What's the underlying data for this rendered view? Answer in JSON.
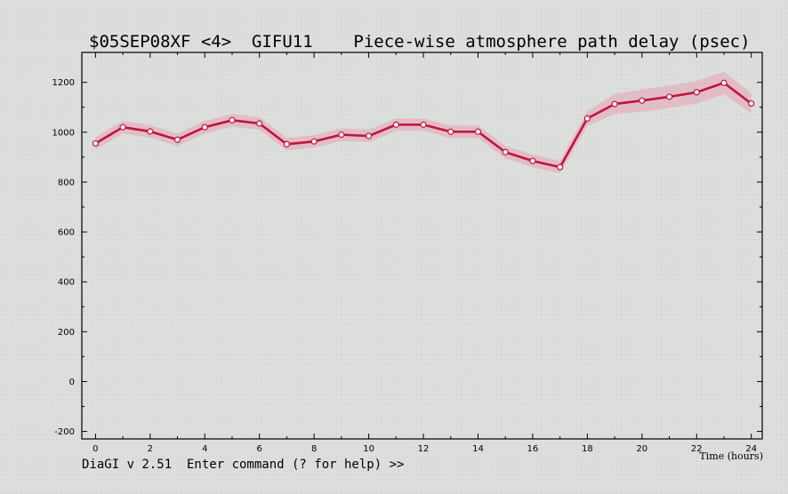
{
  "window": {
    "command_prompt": "DiaGI v 2.51  Enter command (? for help) >>"
  },
  "chart_data": {
    "type": "line",
    "title": "$05SEP08XF <4>  GIFU11    Piece-wise atmosphere path delay (psec)",
    "xlabel": "Time (hours)",
    "ylabel": "",
    "xlim": [
      -0.5,
      24.4
    ],
    "ylim": [
      -230,
      1320
    ],
    "xticks": [
      0,
      2,
      4,
      6,
      8,
      10,
      12,
      14,
      16,
      18,
      20,
      22,
      24
    ],
    "yticks": [
      -200,
      0,
      200,
      400,
      600,
      800,
      1000,
      1200
    ],
    "grid": false,
    "series": [
      {
        "x": [
          0,
          1,
          2,
          3,
          4,
          5,
          6,
          7,
          8,
          9,
          10,
          11,
          12,
          13,
          14,
          15,
          16,
          17,
          18,
          19,
          20,
          21,
          22,
          23,
          24
        ],
        "values": [
          955,
          1020,
          1003,
          970,
          1020,
          1048,
          1035,
          952,
          963,
          990,
          985,
          1030,
          1030,
          1002,
          1002,
          920,
          885,
          860,
          1055,
          1113,
          1127,
          1142,
          1160,
          1198,
          1115
        ],
        "error": [
          25,
          25,
          25,
          25,
          25,
          25,
          25,
          25,
          25,
          25,
          25,
          25,
          25,
          25,
          25,
          25,
          25,
          25,
          30,
          40,
          45,
          45,
          45,
          45,
          40
        ],
        "color": "#c0143c",
        "band_color": "#e8a0b4"
      }
    ]
  }
}
